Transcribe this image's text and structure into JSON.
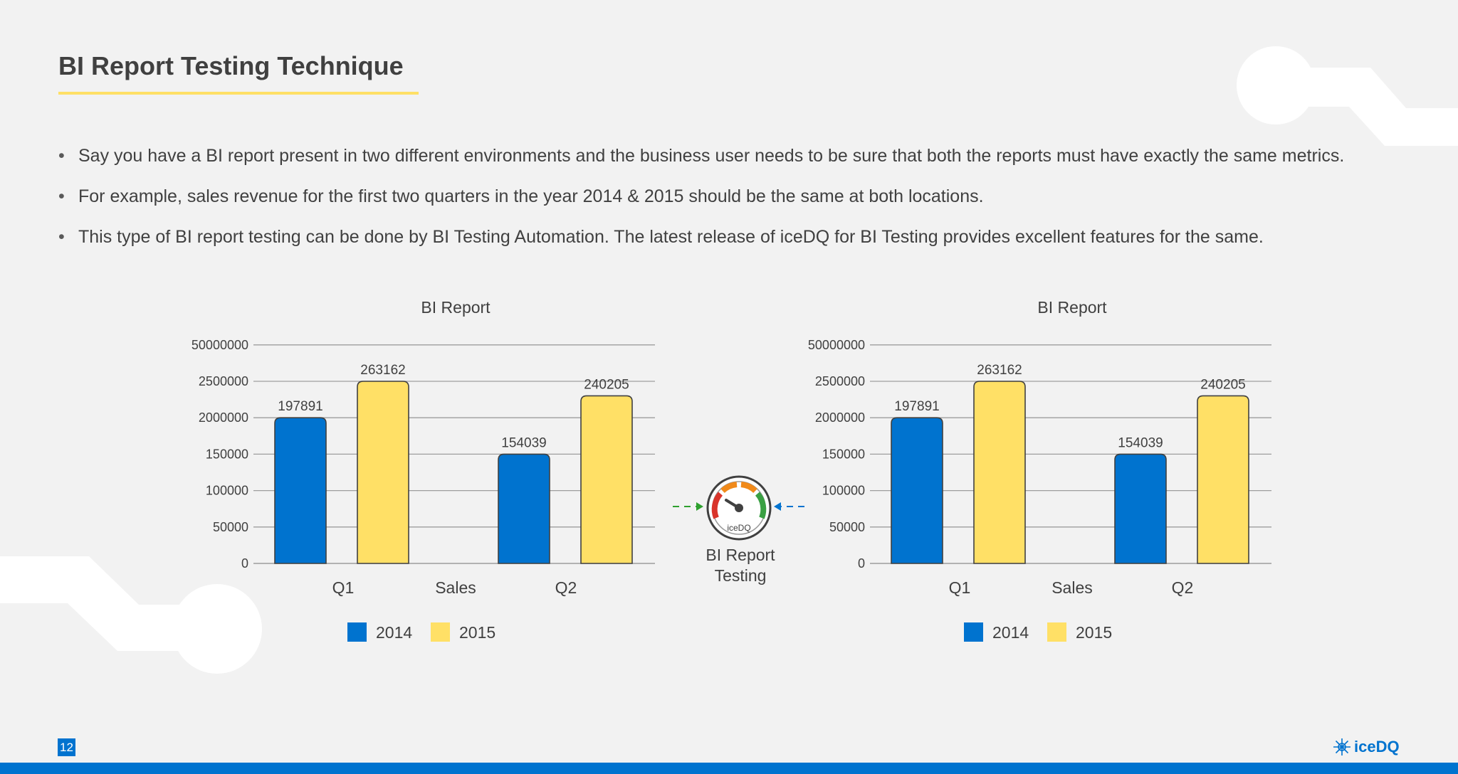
{
  "slide": {
    "title": "BI Report Testing Technique",
    "bullets": [
      "Say you have a BI report present in two different environments and the business user needs to be sure that both the reports must have exactly the same metrics.",
      "For example, sales revenue for the first two quarters in the year 2014 & 2015 should be the same at both locations.",
      "This type of BI report testing can be done by BI Testing Automation. The latest release of iceDQ for BI Testing provides excellent features for the same."
    ],
    "center_label_line1": "BI Report",
    "center_label_line2": "Testing",
    "gauge_label": "iceDQ",
    "page_number": "12",
    "logo_text": "iceDQ"
  },
  "colors": {
    "series_2014": "#0073cf",
    "series_2015": "#ffe066",
    "accent_blue": "#0073cf",
    "underline": "#ffe066"
  },
  "chart_data": [
    {
      "type": "bar",
      "title": "BI Report",
      "categories": [
        "Q1",
        "Q2"
      ],
      "category_axis_label": "Sales",
      "y_tick_labels": [
        "0",
        "50000",
        "100000",
        "150000",
        "2000000",
        "2500000",
        "50000000"
      ],
      "series": [
        {
          "name": "2014",
          "values": [
            197891,
            154039
          ],
          "level": [
            4,
            3
          ]
        },
        {
          "name": "2015",
          "values": [
            263162,
            240205
          ],
          "level": [
            5,
            4.6
          ]
        }
      ],
      "legend": "bottom",
      "grid": true
    },
    {
      "type": "bar",
      "title": "BI Report",
      "categories": [
        "Q1",
        "Q2"
      ],
      "category_axis_label": "Sales",
      "y_tick_labels": [
        "0",
        "50000",
        "100000",
        "150000",
        "2000000",
        "2500000",
        "50000000"
      ],
      "series": [
        {
          "name": "2014",
          "values": [
            197891,
            154039
          ],
          "level": [
            4,
            3
          ]
        },
        {
          "name": "2015",
          "values": [
            263162,
            240205
          ],
          "level": [
            5,
            4.6
          ]
        }
      ],
      "legend": "bottom",
      "grid": true
    }
  ]
}
